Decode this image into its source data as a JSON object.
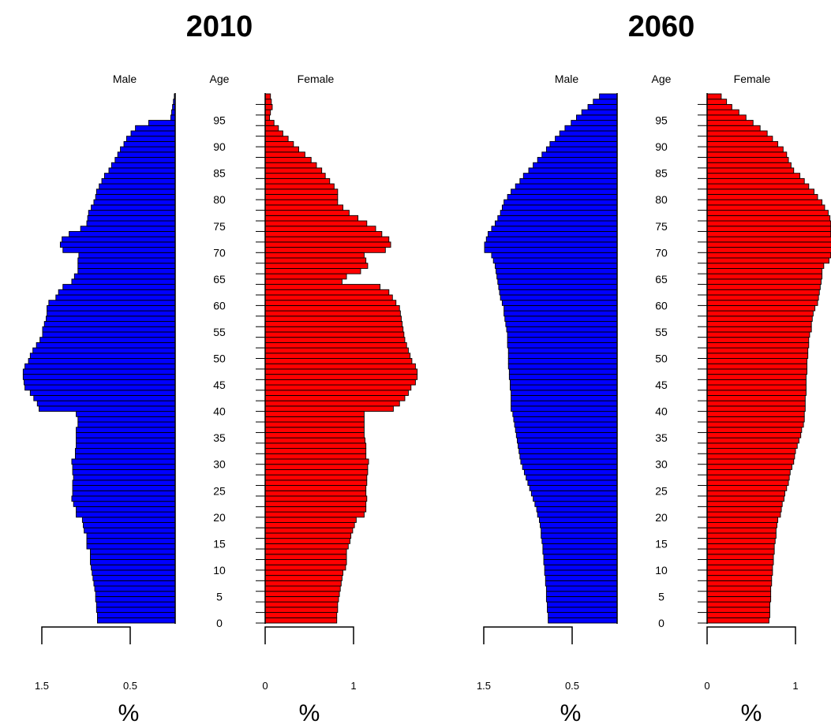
{
  "colors": {
    "male": "#0000ff",
    "female": "#ff0000",
    "outline": "#000000"
  },
  "chart_data": [
    {
      "type": "bar",
      "orientation": "horizontal-pyramid",
      "title": "2010",
      "male_label": "Male",
      "female_label": "Female",
      "age_label": "Age",
      "age_ticks": [
        "0",
        "5",
        "10",
        "15",
        "20",
        "25",
        "30",
        "35",
        "40",
        "45",
        "50",
        "55",
        "60",
        "65",
        "70",
        "75",
        "80",
        "85",
        "90",
        "95"
      ],
      "male_axis_ticks": [
        "1.5",
        "0.5"
      ],
      "female_axis_ticks": [
        "0",
        "1"
      ],
      "x_unit": "%",
      "ages": [
        0,
        1,
        2,
        3,
        4,
        5,
        6,
        7,
        8,
        9,
        10,
        11,
        12,
        13,
        14,
        15,
        16,
        17,
        18,
        19,
        20,
        21,
        22,
        23,
        24,
        25,
        26,
        27,
        28,
        29,
        30,
        31,
        32,
        33,
        34,
        35,
        36,
        37,
        38,
        39,
        40,
        41,
        42,
        43,
        44,
        45,
        46,
        47,
        48,
        49,
        50,
        51,
        52,
        53,
        54,
        55,
        56,
        57,
        58,
        59,
        60,
        61,
        62,
        63,
        64,
        65,
        66,
        67,
        68,
        69,
        70,
        71,
        72,
        73,
        74,
        75,
        76,
        77,
        78,
        79,
        80,
        81,
        82,
        83,
        84,
        85,
        86,
        87,
        88,
        89,
        90,
        91,
        92,
        93,
        94,
        95,
        96,
        97,
        98,
        99
      ],
      "series": [
        {
          "name": "Male",
          "values": [
            0.88,
            0.88,
            0.89,
            0.89,
            0.9,
            0.9,
            0.91,
            0.92,
            0.93,
            0.94,
            0.95,
            0.96,
            0.96,
            0.96,
            1.0,
            1.0,
            1.0,
            1.03,
            1.04,
            1.05,
            1.12,
            1.12,
            1.15,
            1.17,
            1.16,
            1.16,
            1.16,
            1.15,
            1.16,
            1.16,
            1.17,
            1.13,
            1.13,
            1.12,
            1.12,
            1.12,
            1.12,
            1.1,
            1.1,
            1.12,
            1.54,
            1.56,
            1.6,
            1.64,
            1.7,
            1.71,
            1.72,
            1.72,
            1.7,
            1.66,
            1.64,
            1.61,
            1.57,
            1.53,
            1.5,
            1.5,
            1.48,
            1.46,
            1.45,
            1.45,
            1.43,
            1.35,
            1.32,
            1.27,
            1.17,
            1.14,
            1.1,
            1.1,
            1.1,
            1.09,
            1.27,
            1.3,
            1.28,
            1.2,
            1.07,
            1.0,
            0.99,
            0.98,
            0.95,
            0.92,
            0.9,
            0.89,
            0.86,
            0.83,
            0.8,
            0.75,
            0.72,
            0.68,
            0.65,
            0.62,
            0.58,
            0.55,
            0.5,
            0.45,
            0.3,
            0.05,
            0.04,
            0.03,
            0.02,
            0.01
          ]
        },
        {
          "name": "Female",
          "values": [
            0.81,
            0.81,
            0.82,
            0.82,
            0.83,
            0.84,
            0.85,
            0.86,
            0.87,
            0.88,
            0.91,
            0.92,
            0.92,
            0.92,
            0.94,
            0.96,
            0.97,
            0.99,
            1.01,
            1.03,
            1.12,
            1.14,
            1.14,
            1.15,
            1.14,
            1.14,
            1.15,
            1.15,
            1.16,
            1.16,
            1.17,
            1.14,
            1.14,
            1.14,
            1.13,
            1.12,
            1.12,
            1.12,
            1.12,
            1.12,
            1.45,
            1.52,
            1.58,
            1.62,
            1.65,
            1.7,
            1.72,
            1.72,
            1.7,
            1.66,
            1.64,
            1.62,
            1.6,
            1.58,
            1.57,
            1.56,
            1.55,
            1.54,
            1.53,
            1.52,
            1.48,
            1.44,
            1.4,
            1.3,
            0.87,
            0.92,
            1.08,
            1.16,
            1.14,
            1.12,
            1.36,
            1.42,
            1.4,
            1.32,
            1.25,
            1.15,
            1.05,
            0.95,
            0.88,
            0.82,
            0.82,
            0.82,
            0.78,
            0.73,
            0.68,
            0.64,
            0.58,
            0.52,
            0.45,
            0.38,
            0.32,
            0.26,
            0.2,
            0.15,
            0.1,
            0.05,
            0.06,
            0.08,
            0.07,
            0.06
          ]
        }
      ]
    },
    {
      "type": "bar",
      "orientation": "horizontal-pyramid",
      "title": "2060",
      "male_label": "Male",
      "female_label": "Female",
      "age_label": "Age",
      "age_ticks": [
        "0",
        "5",
        "10",
        "15",
        "20",
        "25",
        "30",
        "35",
        "40",
        "45",
        "50",
        "55",
        "60",
        "65",
        "70",
        "75",
        "80",
        "85",
        "90",
        "95"
      ],
      "male_axis_ticks": [
        "1.5",
        "0.5"
      ],
      "female_axis_ticks": [
        "0",
        "1"
      ],
      "x_unit": "%",
      "ages": [
        0,
        1,
        2,
        3,
        4,
        5,
        6,
        7,
        8,
        9,
        10,
        11,
        12,
        13,
        14,
        15,
        16,
        17,
        18,
        19,
        20,
        21,
        22,
        23,
        24,
        25,
        26,
        27,
        28,
        29,
        30,
        31,
        32,
        33,
        34,
        35,
        36,
        37,
        38,
        39,
        40,
        41,
        42,
        43,
        44,
        45,
        46,
        47,
        48,
        49,
        50,
        51,
        52,
        53,
        54,
        55,
        56,
        57,
        58,
        59,
        60,
        61,
        62,
        63,
        64,
        65,
        66,
        67,
        68,
        69,
        70,
        71,
        72,
        73,
        74,
        75,
        76,
        77,
        78,
        79,
        80,
        81,
        82,
        83,
        84,
        85,
        86,
        87,
        88,
        89,
        90,
        91,
        92,
        93,
        94,
        95,
        96,
        97,
        98,
        99
      ],
      "series": [
        {
          "name": "Male",
          "values": [
            0.78,
            0.78,
            0.79,
            0.79,
            0.8,
            0.8,
            0.8,
            0.81,
            0.81,
            0.82,
            0.82,
            0.83,
            0.83,
            0.84,
            0.84,
            0.85,
            0.86,
            0.86,
            0.87,
            0.88,
            0.9,
            0.91,
            0.93,
            0.95,
            0.97,
            0.99,
            1.01,
            1.03,
            1.05,
            1.07,
            1.09,
            1.1,
            1.11,
            1.12,
            1.13,
            1.14,
            1.15,
            1.16,
            1.17,
            1.18,
            1.2,
            1.2,
            1.2,
            1.2,
            1.21,
            1.21,
            1.22,
            1.22,
            1.23,
            1.23,
            1.23,
            1.23,
            1.24,
            1.24,
            1.24,
            1.25,
            1.26,
            1.27,
            1.28,
            1.28,
            1.3,
            1.32,
            1.33,
            1.34,
            1.35,
            1.36,
            1.37,
            1.38,
            1.4,
            1.42,
            1.5,
            1.5,
            1.48,
            1.46,
            1.42,
            1.38,
            1.35,
            1.32,
            1.3,
            1.28,
            1.24,
            1.2,
            1.15,
            1.1,
            1.06,
            1.0,
            0.95,
            0.9,
            0.85,
            0.8,
            0.76,
            0.7,
            0.65,
            0.59,
            0.52,
            0.46,
            0.4,
            0.33,
            0.27,
            0.2
          ]
        },
        {
          "name": "Female",
          "values": [
            0.7,
            0.71,
            0.71,
            0.71,
            0.72,
            0.72,
            0.72,
            0.73,
            0.73,
            0.74,
            0.74,
            0.75,
            0.75,
            0.76,
            0.76,
            0.77,
            0.78,
            0.78,
            0.79,
            0.8,
            0.83,
            0.84,
            0.85,
            0.87,
            0.88,
            0.9,
            0.92,
            0.93,
            0.94,
            0.96,
            0.98,
            0.99,
            1.0,
            1.02,
            1.04,
            1.06,
            1.07,
            1.09,
            1.1,
            1.1,
            1.11,
            1.11,
            1.11,
            1.12,
            1.12,
            1.12,
            1.12,
            1.13,
            1.13,
            1.13,
            1.14,
            1.14,
            1.15,
            1.15,
            1.16,
            1.18,
            1.18,
            1.19,
            1.2,
            1.22,
            1.25,
            1.26,
            1.27,
            1.28,
            1.29,
            1.3,
            1.3,
            1.32,
            1.38,
            1.4,
            1.42,
            1.42,
            1.41,
            1.4,
            1.4,
            1.4,
            1.39,
            1.37,
            1.33,
            1.3,
            1.25,
            1.21,
            1.15,
            1.1,
            1.05,
            0.98,
            0.95,
            0.92,
            0.9,
            0.86,
            0.8,
            0.74,
            0.68,
            0.6,
            0.52,
            0.44,
            0.36,
            0.28,
            0.22,
            0.16
          ]
        }
      ]
    }
  ]
}
